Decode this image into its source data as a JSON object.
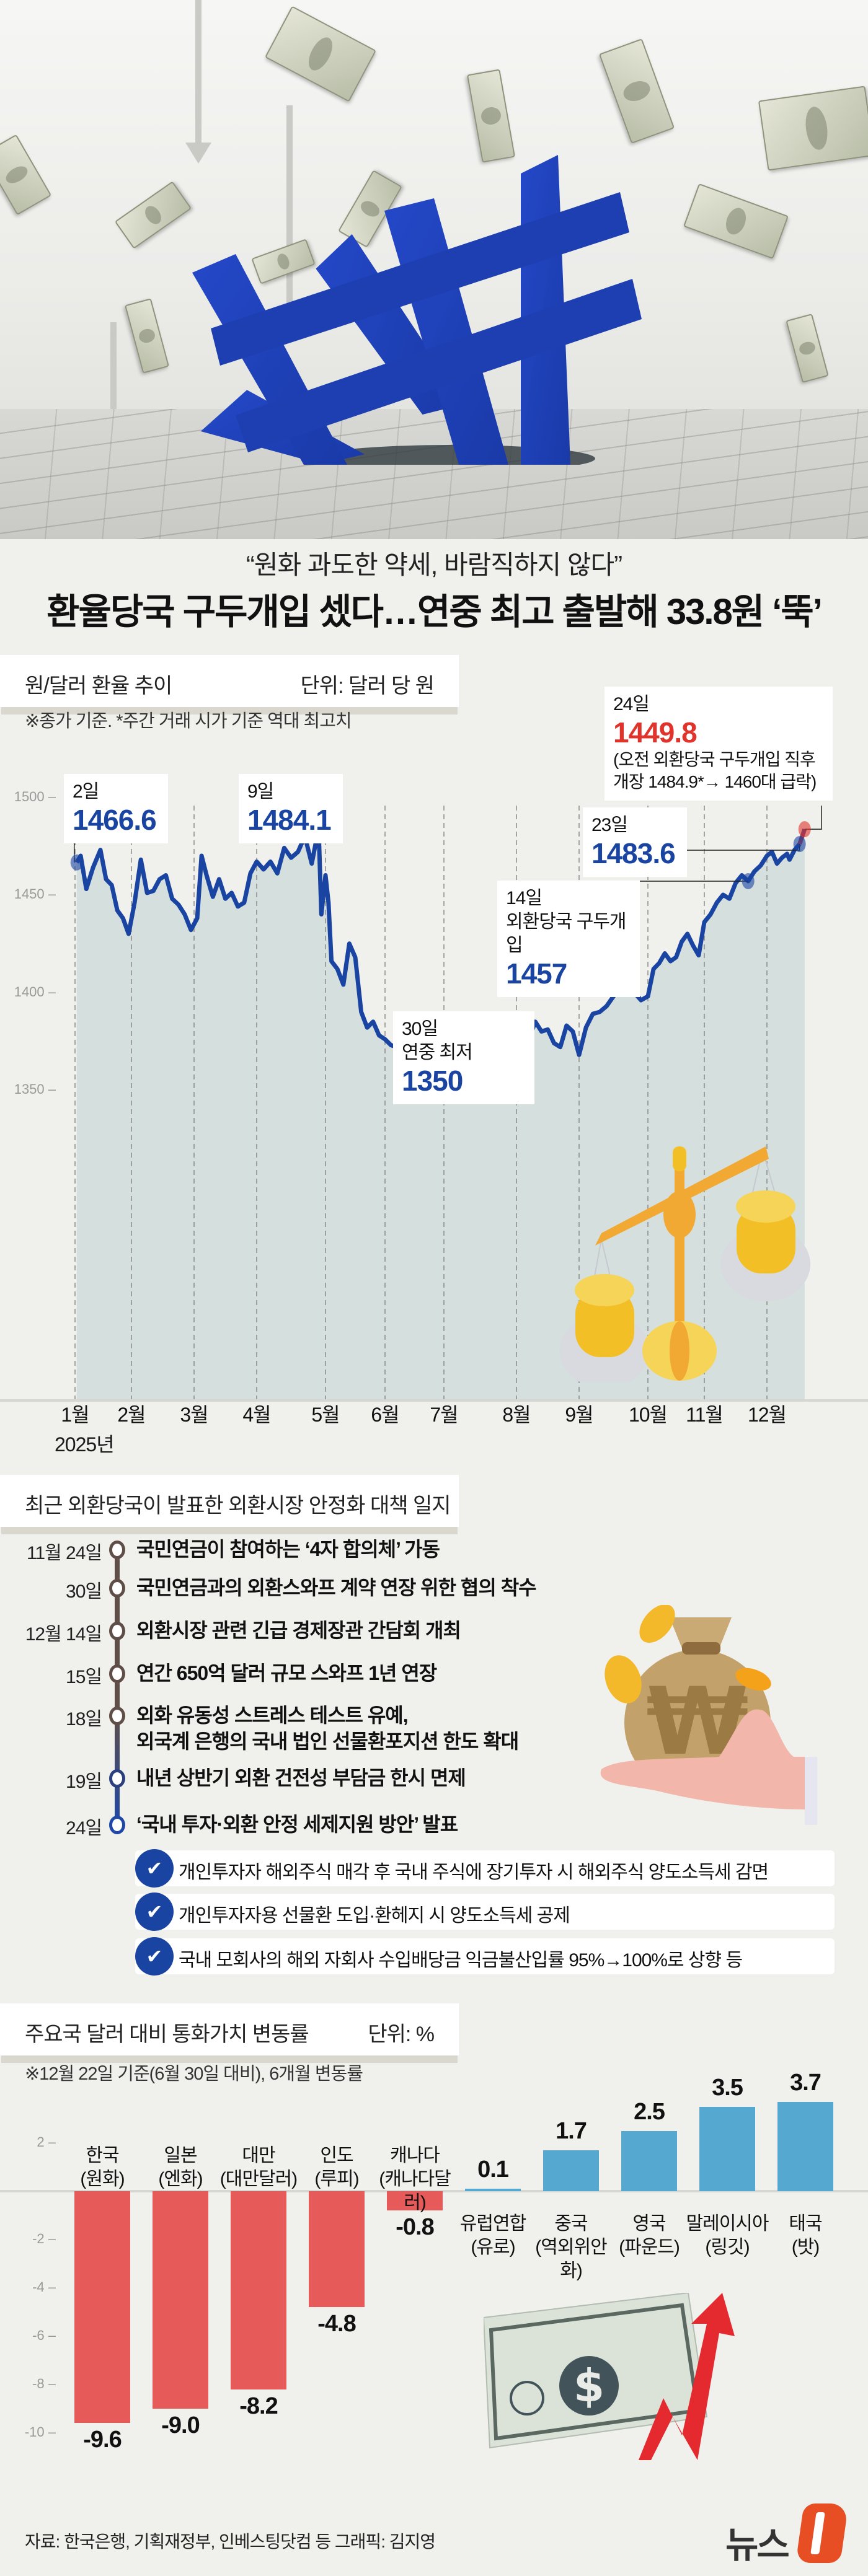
{
  "hero": {
    "subtitle": "“원화 과도한 약세, 바람직하지 않다”",
    "title": "환율당국 구두개입 셌다…연중 최고 출발해 33.8원 ‘뚝’",
    "illustration": "blue-won-symbol-sinking-into-cracked-ground-with-falling-dollar-bills"
  },
  "fx_section": {
    "title": "원/달러 환율 추이",
    "unit": "단위: 달러 당 원",
    "note": "※종가 기준.  *주간 거래 시가 기준 역대 최고치",
    "callouts": [
      {
        "date": "2일",
        "value": "1466.6"
      },
      {
        "date": "9일",
        "value": "1484.1"
      },
      {
        "date": "30일",
        "label": "연중 최저",
        "value": "1350"
      },
      {
        "date": "14일",
        "label": "외환당국 구두개입",
        "value": "1457"
      },
      {
        "date": "23일",
        "value": "1483.6"
      },
      {
        "date": "24일",
        "value": "1449.8",
        "note1": "(오전 외환당국 구두개입 직후",
        "note2": " 개장 1484.9*→ 1460대 급락)"
      }
    ],
    "year_label": "2025년"
  },
  "timeline_section": {
    "title": "최근 외환당국이 발표한 외환시장 안정화 대책 일지",
    "events": [
      {
        "date": "11월 24일",
        "text": "국민연금이 참여하는 ‘4자 합의체’ 가동"
      },
      {
        "date": "30일",
        "text": "국민연금과의 외환스와프 계약 연장 위한 협의 착수"
      },
      {
        "date": "12월 14일",
        "text": "외환시장 관련 긴급 경제장관 간담회 개최"
      },
      {
        "date": "15일",
        "text": "연간 650억 달러 규모 스와프 1년 연장"
      },
      {
        "date": "18일",
        "text": "외화 유동성 스트레스 테스트 유예,",
        "text2": "외국계 은행의 국내 법인 선물환포지션 한도 확대"
      },
      {
        "date": "19일",
        "text": "내년 상반기 외환 건전성 부담금 한시 면제"
      },
      {
        "date": "24일",
        "text": "‘국내 투자·외환 안정 세제지원 방안’ 발표"
      }
    ],
    "checklist": [
      "개인투자자 해외주식 매각 후 국내 주식에 장기투자 시 해외주식 양도소득세 감면",
      "개인투자자용 선물환 도입·환헤지 시 양도소득세 공제",
      "국내 모회사의 해외 자회사 수입배당금 익금불산입률 95%→100%로 상향 등"
    ],
    "check_icon": "✔"
  },
  "bar_section": {
    "title": "주요국 달러 대비 통화가치 변동률",
    "unit": "단위: %",
    "note": "※12월 22일 기준(6월 30일 대비), 6개월 변동률"
  },
  "footer": {
    "source": "자료: 한국은행, 기획재정부, 인베스팅닷컴 등  그래픽: 김지영",
    "logo_text": "뉴스"
  },
  "colors": {
    "background": "#f0f0ec",
    "line": "#1a44a2",
    "area": "#cfdcdc",
    "drop_red": "#e0332b",
    "bar_negative": "#e65a5a",
    "bar_positive": "#55a9d1",
    "timeline_brown": "#5f4e47",
    "timeline_blue": "#1f47a7",
    "logo_orange": "#e84e24"
  },
  "chart_data": [
    {
      "type": "line",
      "title": "원/달러 환율 추이",
      "ylabel": "달러 당 원",
      "xlabel": "2025년",
      "ylim": [
        1300,
        1510
      ],
      "yticks": [
        1350,
        1400,
        1450,
        1500
      ],
      "xticks": [
        "1월",
        "2월",
        "3월",
        "4월",
        "5월",
        "6월",
        "7월",
        "8월",
        "9월",
        "10월",
        "11월",
        "12월"
      ],
      "grid": "vertical dashed at month starts",
      "annotations": [
        {
          "date": "1월 2일",
          "value": 1466.6
        },
        {
          "date": "4월 9일",
          "value": 1484.1
        },
        {
          "date": "6월 30일",
          "value": 1350,
          "label": "연중 최저"
        },
        {
          "date": "12월 14일",
          "value": 1457,
          "label": "외환당국 구두개입"
        },
        {
          "date": "12월 23일",
          "value": 1483.6
        },
        {
          "date": "12월 24일",
          "value": 1449.8,
          "label": "오전 외환당국 구두개입 직후 개장 1484.9*→ 1460대 급락"
        }
      ],
      "series": [
        {
          "name": "원/달러 환율 (종가)",
          "x_month_fraction": [
            0.03,
            0.1,
            0.2,
            0.32,
            0.45,
            0.55,
            0.65,
            0.75,
            0.85,
            0.95,
            1.05,
            1.15,
            1.25,
            1.35,
            1.45,
            1.55,
            1.65,
            1.75,
            1.85,
            1.95,
            2.05,
            2.12,
            2.2,
            2.3,
            2.4,
            2.5,
            2.6,
            2.7,
            2.8,
            2.9,
            3.0,
            3.1,
            3.2,
            3.3,
            3.4,
            3.5,
            3.6,
            3.7,
            3.8,
            3.9,
            3.94,
            4.0,
            4.05,
            4.1,
            4.2,
            4.3,
            4.4,
            4.5,
            4.6,
            4.7,
            4.8,
            4.9,
            5.0,
            5.1,
            5.2,
            5.3,
            5.4,
            5.5,
            5.6,
            5.7,
            5.8,
            5.9,
            5.97,
            6.0,
            6.1,
            6.2,
            6.3,
            6.4,
            6.5,
            6.6,
            6.7,
            6.8,
            6.9,
            7.0,
            7.1,
            7.2,
            7.3,
            7.4,
            7.5,
            7.6,
            7.7,
            7.8,
            7.9,
            8.0,
            8.1,
            8.2,
            8.3,
            8.4,
            8.5,
            8.6,
            8.7,
            8.8,
            8.9,
            9.0,
            9.1,
            9.2,
            9.3,
            9.4,
            9.5,
            9.6,
            9.7,
            9.8,
            9.9,
            10.0,
            10.1,
            10.2,
            10.3,
            10.4,
            10.5,
            10.6,
            10.7,
            10.8,
            10.9,
            11.0,
            11.1,
            11.2,
            11.3,
            11.4,
            11.45,
            11.55,
            11.65,
            11.75
          ],
          "values": [
            1466.6,
            1470,
            1453,
            1464,
            1473,
            1458,
            1455,
            1442,
            1438,
            1430,
            1446,
            1468,
            1451,
            1452,
            1458,
            1460,
            1448,
            1445,
            1440,
            1432,
            1438,
            1470,
            1460,
            1449,
            1458,
            1448,
            1451,
            1444,
            1446,
            1461,
            1467,
            1463,
            1467,
            1461,
            1474,
            1469,
            1472,
            1480,
            1466,
            1484.1,
            1440,
            1460,
            1446,
            1416,
            1412,
            1404,
            1425,
            1418,
            1390,
            1382,
            1385,
            1378,
            1376,
            1373,
            1372,
            1382,
            1370,
            1362,
            1358,
            1365,
            1375,
            1352,
            1350,
            1356,
            1361,
            1370,
            1376,
            1382,
            1385,
            1380,
            1372,
            1386,
            1384,
            1380,
            1388,
            1376,
            1385,
            1380,
            1381,
            1374,
            1372,
            1383,
            1380,
            1368,
            1382,
            1389,
            1390,
            1393,
            1398,
            1403,
            1405,
            1400,
            1396,
            1398,
            1412,
            1415,
            1420,
            1416,
            1418,
            1426,
            1430,
            1424,
            1419,
            1436,
            1440,
            1446,
            1450,
            1448,
            1456,
            1460,
            1457,
            1462,
            1465,
            1470,
            1472,
            1466,
            1469,
            1471,
            1468,
            1473,
            1476,
            1483.6,
            1449.8
          ]
        }
      ]
    },
    {
      "type": "bar",
      "title": "주요국 달러 대비 통화가치 변동률",
      "subtitle": "※12월 22일 기준(6월 30일 대비), 6개월 변동률",
      "ylabel": "%",
      "ylim": [
        -10,
        2
      ],
      "yticks": [
        2,
        -2,
        -4,
        -6,
        -8,
        -10
      ],
      "categories": [
        "한국\n(원화)",
        "일본\n(엔화)",
        "대만\n(대만달러)",
        "인도\n(루피)",
        "캐나다\n(캐나다달러)",
        "유럽연합\n(유로)",
        "중국\n(역외위안화)",
        "영국\n(파운드)",
        "말레이시아\n(링깃)",
        "태국\n(밧)"
      ],
      "category_names": [
        "한국",
        "일본",
        "대만",
        "인도",
        "캐나다",
        "유럽연합",
        "중국",
        "영국",
        "말레이시아",
        "태국"
      ],
      "category_currencies": [
        "(원화)",
        "(엔화)",
        "(대만달러)",
        "(루피)",
        "(캐나다달러)",
        "(유로)",
        "(역외위안화)",
        "(파운드)",
        "(링깃)",
        "(밧)"
      ],
      "values": [
        -9.6,
        -9.0,
        -8.2,
        -4.8,
        -0.8,
        0.1,
        1.7,
        2.5,
        3.5,
        3.7
      ],
      "value_labels": [
        "-9.6",
        "-9.0",
        "-8.2",
        "-4.8",
        "-0.8",
        "0.1",
        "1.7",
        "2.5",
        "3.5",
        "3.7"
      ]
    }
  ]
}
